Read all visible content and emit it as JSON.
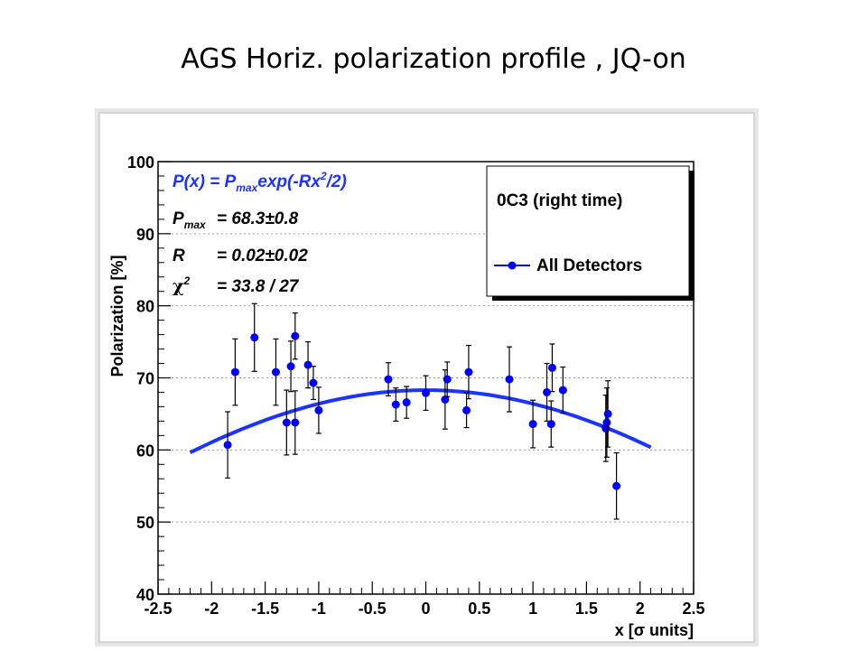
{
  "slide": {
    "title": "AGS Horiz. polarization profile , JQ-on"
  },
  "colors": {
    "canvas": "#e6e6e6",
    "frame": "#ffffff",
    "points": "#0000ff",
    "fit": "#1a33ff",
    "fit_text": "#1a33ff",
    "grid": "#9a9a9a"
  },
  "chart_data": {
    "type": "scatter",
    "title": "",
    "xlabel": "x [σ units]",
    "ylabel": "Polarization [%]",
    "xlim": [
      -2.5,
      2.5
    ],
    "ylim": [
      40,
      100
    ],
    "x_ticks": [
      "-2.5",
      "-2",
      "-1.5",
      "-1",
      "-0.5",
      "0",
      "0.5",
      "1",
      "1.5",
      "2",
      "2.5"
    ],
    "y_ticks": [
      "40",
      "50",
      "60",
      "70",
      "80",
      "90",
      "100"
    ],
    "grid": "horizontal-dotted",
    "fit_annotation": {
      "formula": "P(x) = P",
      "formula_sub": "max",
      "formula_tail": "exp(-Rx",
      "formula_sup": "2",
      "formula_end": "/2)",
      "pmax_symbol": "P",
      "pmax_sub": "max",
      "pmax_value": "= 68.3±0.8",
      "r_symbol": "R",
      "r_value": "= 0.02±0.02",
      "chi_symbol": "χ",
      "chi_sup": "2",
      "chi_value": "= 33.8 / 27"
    },
    "legend": {
      "header": "0C3 (right time)",
      "entry": "All Detectors",
      "placement": "top-right"
    },
    "fit": {
      "pmax": 68.3,
      "R": 0.02,
      "x_range": [
        -2.2,
        2.1
      ]
    },
    "series": [
      {
        "name": "All Detectors",
        "points": [
          {
            "x": -1.85,
            "y": 60.7,
            "err": 4.6
          },
          {
            "x": -1.78,
            "y": 70.8,
            "err": 4.6
          },
          {
            "x": -1.6,
            "y": 75.6,
            "err": 4.7
          },
          {
            "x": -1.4,
            "y": 70.8,
            "err": 4.6
          },
          {
            "x": -1.3,
            "y": 63.8,
            "err": 4.5
          },
          {
            "x": -1.26,
            "y": 71.6,
            "err": 3.5
          },
          {
            "x": -1.22,
            "y": 75.8,
            "err": 3.2
          },
          {
            "x": -1.22,
            "y": 63.8,
            "err": 4.4
          },
          {
            "x": -1.1,
            "y": 71.8,
            "err": 3.2
          },
          {
            "x": -1.05,
            "y": 69.3,
            "err": 2.3
          },
          {
            "x": -1.0,
            "y": 65.5,
            "err": 3.2
          },
          {
            "x": -0.35,
            "y": 69.8,
            "err": 2.3
          },
          {
            "x": -0.28,
            "y": 66.3,
            "err": 2.3
          },
          {
            "x": -0.18,
            "y": 66.6,
            "err": 2.2
          },
          {
            "x": 0.0,
            "y": 67.9,
            "err": 2.4
          },
          {
            "x": 0.18,
            "y": 67.0,
            "err": 4.1
          },
          {
            "x": 0.2,
            "y": 69.8,
            "err": 2.4
          },
          {
            "x": 0.38,
            "y": 65.5,
            "err": 2.4
          },
          {
            "x": 0.4,
            "y": 70.8,
            "err": 3.7
          },
          {
            "x": 0.78,
            "y": 69.8,
            "err": 4.5
          },
          {
            "x": 1.0,
            "y": 63.6,
            "err": 3.3
          },
          {
            "x": 1.13,
            "y": 68.0,
            "err": 4.0
          },
          {
            "x": 1.17,
            "y": 63.6,
            "err": 3.2
          },
          {
            "x": 1.18,
            "y": 71.4,
            "err": 3.3
          },
          {
            "x": 1.28,
            "y": 68.3,
            "err": 3.2
          },
          {
            "x": 1.68,
            "y": 63.0,
            "err": 4.6
          },
          {
            "x": 1.69,
            "y": 63.8,
            "err": 4.8
          },
          {
            "x": 1.7,
            "y": 65.0,
            "err": 4.6
          },
          {
            "x": 1.78,
            "y": 55.0,
            "err": 4.6
          }
        ]
      }
    ]
  }
}
